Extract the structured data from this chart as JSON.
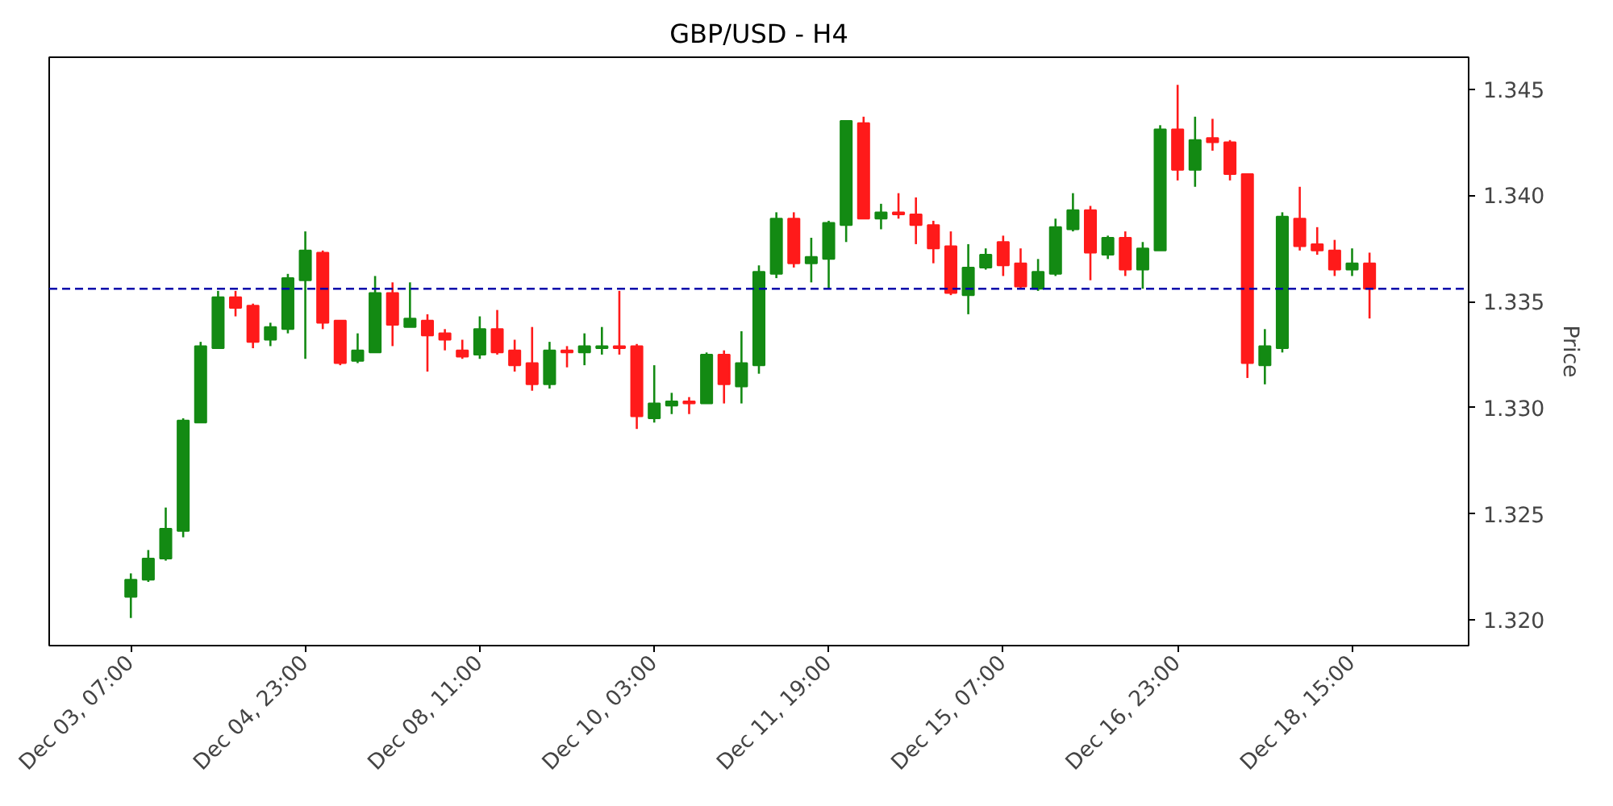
{
  "chart_data": {
    "type": "candlestick",
    "title": "GBP/USD - H4",
    "ylabel": "Price",
    "categories": [
      "Dec 03, 07:00",
      null,
      null,
      null,
      null,
      null,
      null,
      null,
      null,
      null,
      "Dec 04, 23:00",
      null,
      null,
      null,
      null,
      null,
      null,
      null,
      null,
      null,
      "Dec 08, 11:00",
      null,
      null,
      null,
      null,
      null,
      null,
      null,
      null,
      null,
      "Dec 10, 03:00",
      null,
      null,
      null,
      null,
      null,
      null,
      null,
      null,
      null,
      "Dec 11, 19:00",
      null,
      null,
      null,
      null,
      null,
      null,
      null,
      null,
      null,
      "Dec 15, 07:00",
      null,
      null,
      null,
      null,
      null,
      null,
      null,
      null,
      null,
      "Dec 16, 23:00",
      null,
      null,
      null,
      null,
      null,
      null,
      null,
      null,
      null,
      "Dec 18, 15:00",
      null
    ],
    "ohlc": [
      [
        1.3211,
        1.3222,
        1.3201,
        1.3219
      ],
      [
        1.3219,
        1.3233,
        1.3218,
        1.3229
      ],
      [
        1.3229,
        1.3253,
        1.3228,
        1.3243
      ],
      [
        1.3242,
        1.3295,
        1.3239,
        1.3294
      ],
      [
        1.3293,
        1.3331,
        1.3293,
        1.3329
      ],
      [
        1.3328,
        1.3355,
        1.3328,
        1.3352
      ],
      [
        1.3352,
        1.3355,
        1.3343,
        1.3347
      ],
      [
        1.3348,
        1.3349,
        1.3328,
        1.3331
      ],
      [
        1.3332,
        1.334,
        1.3329,
        1.3338
      ],
      [
        1.3337,
        1.3363,
        1.3335,
        1.3361
      ],
      [
        1.336,
        1.3383,
        1.3323,
        1.3374
      ],
      [
        1.3373,
        1.3374,
        1.3337,
        1.334
      ],
      [
        1.3341,
        1.3341,
        1.332,
        1.3321
      ],
      [
        1.3322,
        1.3335,
        1.3321,
        1.3327
      ],
      [
        1.3326,
        1.3362,
        1.3326,
        1.3354
      ],
      [
        1.3354,
        1.3359,
        1.3329,
        1.3339
      ],
      [
        1.3338,
        1.3359,
        1.3338,
        1.3342
      ],
      [
        1.3341,
        1.3344,
        1.3317,
        1.3334
      ],
      [
        1.3335,
        1.3337,
        1.3327,
        1.3332
      ],
      [
        1.3327,
        1.3332,
        1.3323,
        1.3324
      ],
      [
        1.3325,
        1.3343,
        1.3323,
        1.3337
      ],
      [
        1.3337,
        1.3346,
        1.3325,
        1.3326
      ],
      [
        1.3327,
        1.3332,
        1.3317,
        1.332
      ],
      [
        1.3321,
        1.3338,
        1.3308,
        1.3311
      ],
      [
        1.3311,
        1.3331,
        1.3309,
        1.3327
      ],
      [
        1.3327,
        1.3329,
        1.3319,
        1.3326
      ],
      [
        1.3326,
        1.3335,
        1.332,
        1.3329
      ],
      [
        1.3328,
        1.3338,
        1.3325,
        1.3329
      ],
      [
        1.3329,
        1.3355,
        1.3325,
        1.3328
      ],
      [
        1.3329,
        1.333,
        1.329,
        1.3296
      ],
      [
        1.3295,
        1.332,
        1.3293,
        1.3302
      ],
      [
        1.3301,
        1.3307,
        1.3297,
        1.3303
      ],
      [
        1.3303,
        1.3305,
        1.3297,
        1.3302
      ],
      [
        1.3302,
        1.3326,
        1.3302,
        1.3325
      ],
      [
        1.3325,
        1.3327,
        1.3302,
        1.3311
      ],
      [
        1.331,
        1.3336,
        1.3302,
        1.3321
      ],
      [
        1.332,
        1.3367,
        1.3316,
        1.3364
      ],
      [
        1.3363,
        1.3392,
        1.3361,
        1.3389
      ],
      [
        1.3389,
        1.3392,
        1.3366,
        1.3368
      ],
      [
        1.3368,
        1.338,
        1.3359,
        1.3371
      ],
      [
        1.337,
        1.3388,
        1.3356,
        1.3387
      ],
      [
        1.3386,
        1.3435,
        1.3378,
        1.3435
      ],
      [
        1.3434,
        1.3437,
        1.3389,
        1.3389
      ],
      [
        1.3389,
        1.3396,
        1.3384,
        1.3392
      ],
      [
        1.3392,
        1.3401,
        1.3389,
        1.3391
      ],
      [
        1.3391,
        1.3399,
        1.3377,
        1.3386
      ],
      [
        1.3386,
        1.3388,
        1.3368,
        1.3375
      ],
      [
        1.3376,
        1.3383,
        1.3353,
        1.3354
      ],
      [
        1.3353,
        1.3377,
        1.3344,
        1.3366
      ],
      [
        1.3366,
        1.3375,
        1.3365,
        1.3372
      ],
      [
        1.3378,
        1.3381,
        1.3362,
        1.3367
      ],
      [
        1.3368,
        1.3375,
        1.3356,
        1.3357
      ],
      [
        1.3356,
        1.337,
        1.3355,
        1.3364
      ],
      [
        1.3363,
        1.3389,
        1.3362,
        1.3385
      ],
      [
        1.3384,
        1.3401,
        1.3383,
        1.3393
      ],
      [
        1.3393,
        1.3395,
        1.336,
        1.3373
      ],
      [
        1.3372,
        1.3381,
        1.337,
        1.338
      ],
      [
        1.338,
        1.3383,
        1.3362,
        1.3365
      ],
      [
        1.3365,
        1.3378,
        1.3356,
        1.3375
      ],
      [
        1.3374,
        1.3433,
        1.3374,
        1.3431
      ],
      [
        1.3431,
        1.3452,
        1.3407,
        1.3412
      ],
      [
        1.3412,
        1.3437,
        1.3404,
        1.3426
      ],
      [
        1.3427,
        1.3436,
        1.3421,
        1.3425
      ],
      [
        1.3425,
        1.3426,
        1.3407,
        1.341
      ],
      [
        1.341,
        1.341,
        1.3314,
        1.3321
      ],
      [
        1.332,
        1.3337,
        1.3311,
        1.3329
      ],
      [
        1.3328,
        1.3392,
        1.3326,
        1.339
      ],
      [
        1.3389,
        1.3404,
        1.3374,
        1.3376
      ],
      [
        1.3377,
        1.3385,
        1.3372,
        1.3374
      ],
      [
        1.3374,
        1.3379,
        1.3362,
        1.3365
      ],
      [
        1.3365,
        1.3375,
        1.3362,
        1.3368
      ],
      [
        1.3368,
        1.3373,
        1.3342,
        1.3356
      ]
    ],
    "colors": [
      "#138a13",
      "#138a13",
      "#138a13",
      "#138a13",
      "#138a13",
      "#138a13",
      "#ff1a1a",
      "#ff1a1a",
      "#138a13",
      "#138a13",
      "#138a13",
      "#ff1a1a",
      "#ff1a1a",
      "#138a13",
      "#138a13",
      "#ff1a1a",
      "#138a13",
      "#ff1a1a",
      "#ff1a1a",
      "#ff1a1a",
      "#138a13",
      "#ff1a1a",
      "#ff1a1a",
      "#ff1a1a",
      "#138a13",
      "#ff1a1a",
      "#138a13",
      "#138a13",
      "#ff1a1a",
      "#ff1a1a",
      "#138a13",
      "#138a13",
      "#ff1a1a",
      "#138a13",
      "#ff1a1a",
      "#138a13",
      "#138a13",
      "#138a13",
      "#ff1a1a",
      "#138a13",
      "#138a13",
      "#138a13",
      "#ff1a1a",
      "#138a13",
      "#ff1a1a",
      "#ff1a1a",
      "#ff1a1a",
      "#ff1a1a",
      "#138a13",
      "#138a13",
      "#ff1a1a",
      "#ff1a1a",
      "#138a13",
      "#138a13",
      "#138a13",
      "#ff1a1a",
      "#138a13",
      "#ff1a1a",
      "#138a13",
      "#138a13",
      "#ff1a1a",
      "#138a13",
      "#ff1a1a",
      "#ff1a1a",
      "#ff1a1a",
      "#138a13",
      "#138a13",
      "#ff1a1a",
      "#ff1a1a",
      "#ff1a1a",
      "#138a13",
      "#ff1a1a"
    ],
    "ylim": [
      1.3188,
      1.3465
    ],
    "yticks": [
      {
        "value": 1.32,
        "label": "1.320"
      },
      1.325,
      {
        "value": 1.33,
        "label": "1.330"
      },
      1.335,
      {
        "value": 1.34,
        "label": "1.340"
      },
      1.345
    ],
    "ref_lines": [
      {
        "axis": "y",
        "value": 1.3356,
        "color": "#0000aa",
        "line_style": "dashed"
      }
    ],
    "grid": false
  }
}
